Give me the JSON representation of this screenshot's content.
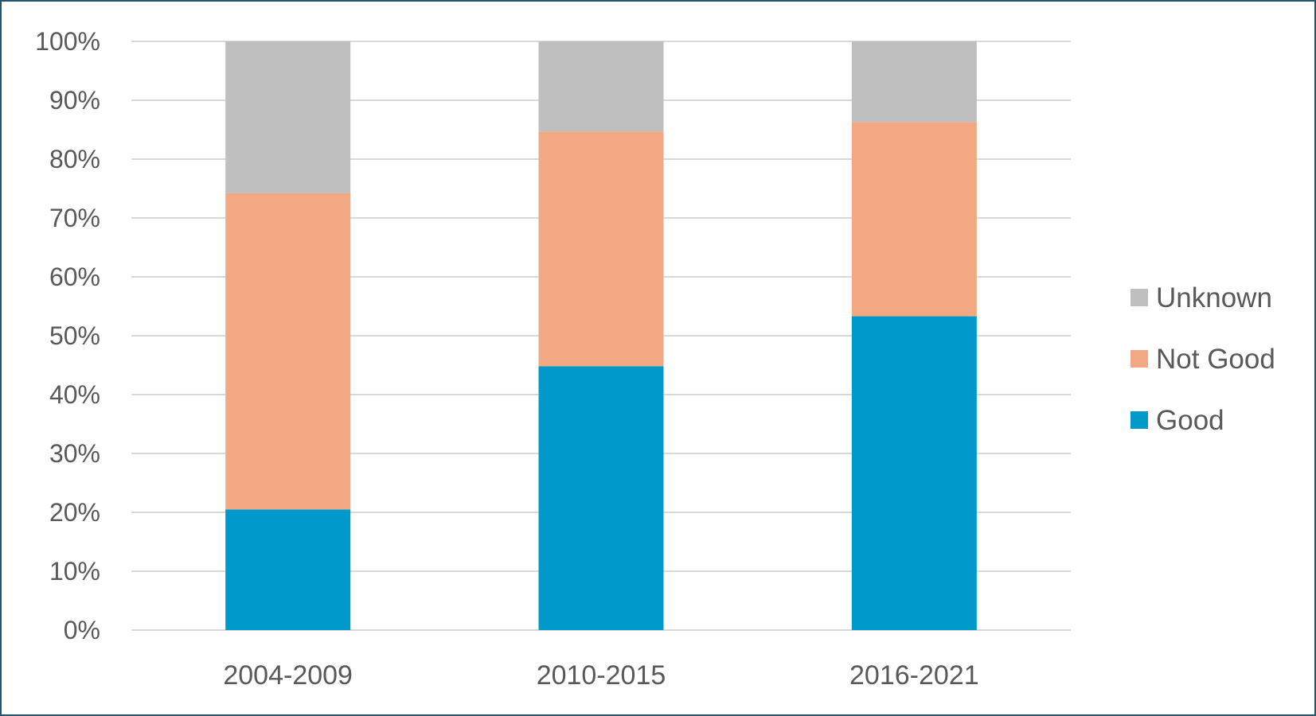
{
  "chart_data": {
    "type": "bar",
    "stacked": true,
    "percent": true,
    "title": "",
    "xlabel": "",
    "ylabel": "",
    "categories": [
      "2004-2009",
      "2010-2015",
      "2016-2021"
    ],
    "series": [
      {
        "name": "Good",
        "color": "#0099cc",
        "values": [
          20.5,
          44.8,
          53.3
        ]
      },
      {
        "name": "Not Good",
        "color": "#f2a983",
        "values": [
          53.7,
          39.9,
          33.0
        ]
      },
      {
        "name": "Unknown",
        "color": "#bfbfbf",
        "values": [
          25.8,
          15.3,
          13.7
        ]
      }
    ],
    "ylim": [
      0,
      100
    ],
    "yticks": [
      "0%",
      "10%",
      "20%",
      "30%",
      "40%",
      "50%",
      "60%",
      "70%",
      "80%",
      "90%",
      "100%"
    ],
    "grid": true,
    "legend": {
      "position": "right",
      "order": [
        "Unknown",
        "Not Good",
        "Good"
      ]
    }
  }
}
